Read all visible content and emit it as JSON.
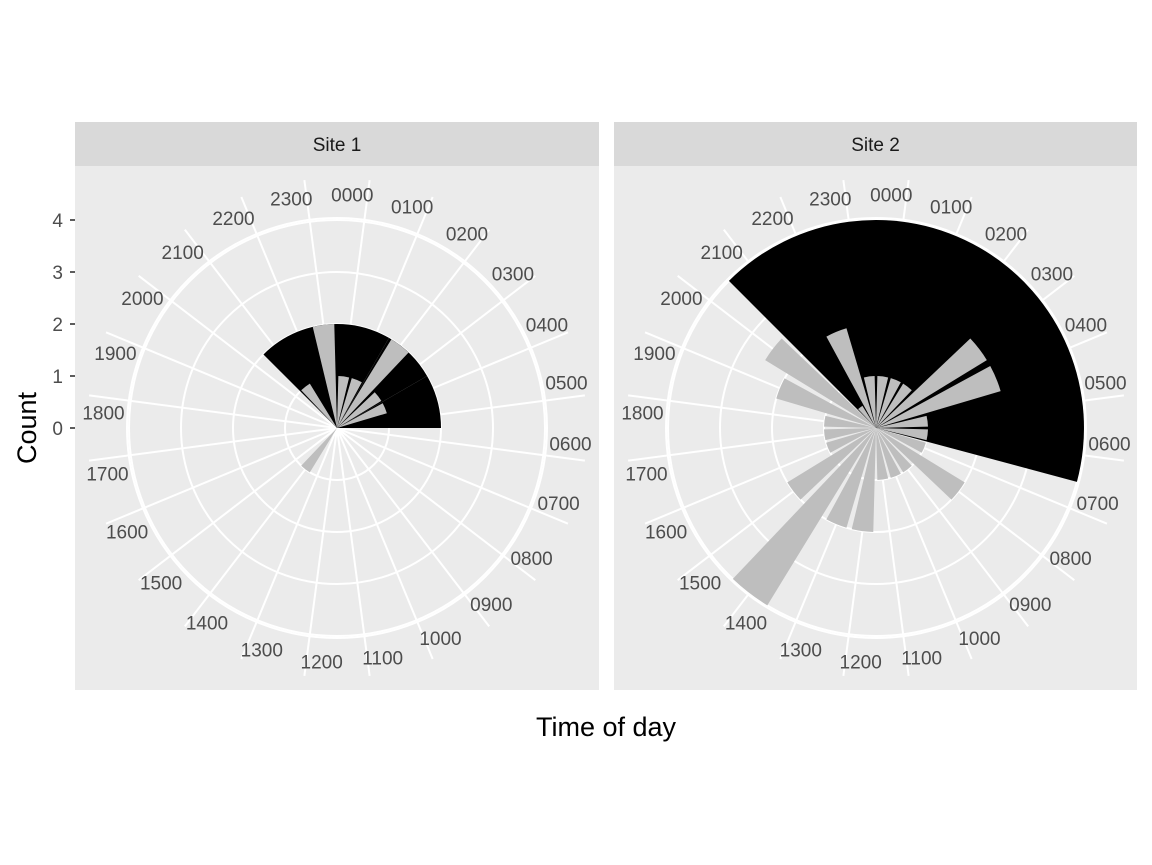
{
  "chart_data": {
    "type": "polar-bar",
    "xlabel": "Time of day",
    "ylabel": "Count",
    "y_ticks": [
      0,
      1,
      2,
      3,
      4
    ],
    "hour_labels": [
      "0000",
      "0100",
      "0200",
      "0300",
      "0400",
      "0500",
      "0600",
      "0700",
      "0800",
      "0900",
      "1000",
      "1100",
      "1200",
      "1300",
      "1400",
      "1500",
      "1600",
      "1700",
      "1800",
      "1900",
      "2000",
      "2100",
      "2200",
      "2300"
    ],
    "colors": {
      "bars": "#bebebe",
      "highlight": "#000000",
      "panel_bg": "#ebebeb",
      "strip_bg": "#d9d9d9",
      "grid": "#ffffff"
    },
    "panels": [
      {
        "title": "Site 1",
        "highlight": {
          "start_hour": 21,
          "end_hour": 6,
          "value": 2,
          "segments": [
            {
              "start_hour": 21,
              "end_hour": 0,
              "value": 2
            },
            {
              "start_hour": 0,
              "end_hour": 2,
              "value": 2
            },
            {
              "start_hour": 2,
              "end_hour": 4,
              "value": 2
            },
            {
              "start_hour": 4,
              "end_hour": 6,
              "value": 2
            }
          ]
        },
        "bars": [
          {
            "hour": 0,
            "value": 1
          },
          {
            "hour": 1,
            "value": 1
          },
          {
            "hour": 2,
            "value": 2
          },
          {
            "hour": 3,
            "value": 1
          },
          {
            "hour": 4,
            "value": 1
          },
          {
            "hour": 14,
            "value": 1
          },
          {
            "hour": 21,
            "value": 1
          },
          {
            "hour": 23,
            "value": 2
          }
        ]
      },
      {
        "title": "Site 2",
        "highlight": {
          "start_hour": 21,
          "end_hour": 7,
          "value": 4,
          "segments": [
            {
              "start_hour": 21,
              "end_hour": 7,
              "value": 4
            }
          ]
        },
        "bars": [
          {
            "hour": 0,
            "value": 1
          },
          {
            "hour": 1,
            "value": 1
          },
          {
            "hour": 2,
            "value": 1
          },
          {
            "hour": 3,
            "value": 2.5
          },
          {
            "hour": 4,
            "value": 2.5
          },
          {
            "hour": 5,
            "value": 1
          },
          {
            "hour": 6,
            "value": 1
          },
          {
            "hour": 7,
            "value": 1
          },
          {
            "hour": 8,
            "value": 2
          },
          {
            "hour": 9,
            "value": 1
          },
          {
            "hour": 10,
            "value": 1
          },
          {
            "hour": 11,
            "value": 1
          },
          {
            "hour": 12,
            "value": 2
          },
          {
            "hour": 13,
            "value": 2
          },
          {
            "hour": 14,
            "value": 4
          },
          {
            "hour": 15,
            "value": 2
          },
          {
            "hour": 16,
            "value": 1
          },
          {
            "hour": 17,
            "value": 1
          },
          {
            "hour": 18,
            "value": 1
          },
          {
            "hour": 19,
            "value": 2
          },
          {
            "hour": 20,
            "value": 2.5
          },
          {
            "hour": 21,
            "value": 0.5
          },
          {
            "hour": 22,
            "value": 2
          },
          {
            "hour": 23,
            "value": 1
          }
        ]
      }
    ]
  }
}
